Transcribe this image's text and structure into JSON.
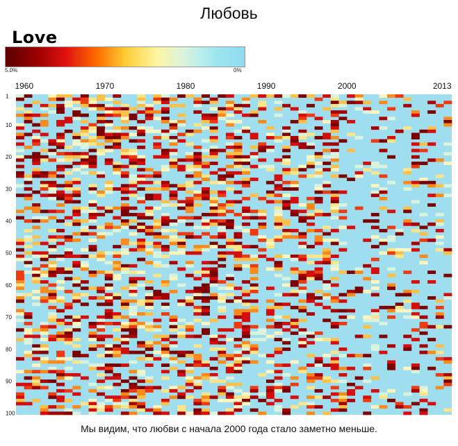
{
  "title": "Любовь",
  "caption": "Мы видим, что любви с начала 2000 года стало заметно меньше.",
  "legend": {
    "title": "Love",
    "max_label": "5.0%",
    "min_label": "0%",
    "colors": [
      "#5a0000",
      "#9a0000",
      "#e01010",
      "#ff6a00",
      "#ffcc33",
      "#fff5a0",
      "#d8f4e0",
      "#9ee6f2",
      "#8fdcf0"
    ]
  },
  "chart_data": {
    "type": "heatmap",
    "title": "Love",
    "xlabel": "",
    "ylabel": "",
    "x_range": [
      1960,
      2013
    ],
    "y_range": [
      1,
      100
    ],
    "x_tick_labels": [
      "1960",
      "1970",
      "1980",
      "1990",
      "2000",
      "2013"
    ],
    "y_tick_labels": [
      "1",
      "10",
      "20",
      "30",
      "40",
      "50",
      "60",
      "70",
      "80",
      "90",
      "100"
    ],
    "value_range": [
      0,
      5.0
    ],
    "value_unit": "%",
    "background_color": "#9fdeef",
    "density_trend": [
      {
        "period": "1960-1969",
        "share_of_cells_colored": 0.48
      },
      {
        "period": "1970-1979",
        "share_of_cells_colored": 0.5
      },
      {
        "period": "1980-1989",
        "share_of_cells_colored": 0.46
      },
      {
        "period": "1990-1999",
        "share_of_cells_colored": 0.4
      },
      {
        "period": "2000-2013",
        "share_of_cells_colored": 0.22
      }
    ]
  }
}
